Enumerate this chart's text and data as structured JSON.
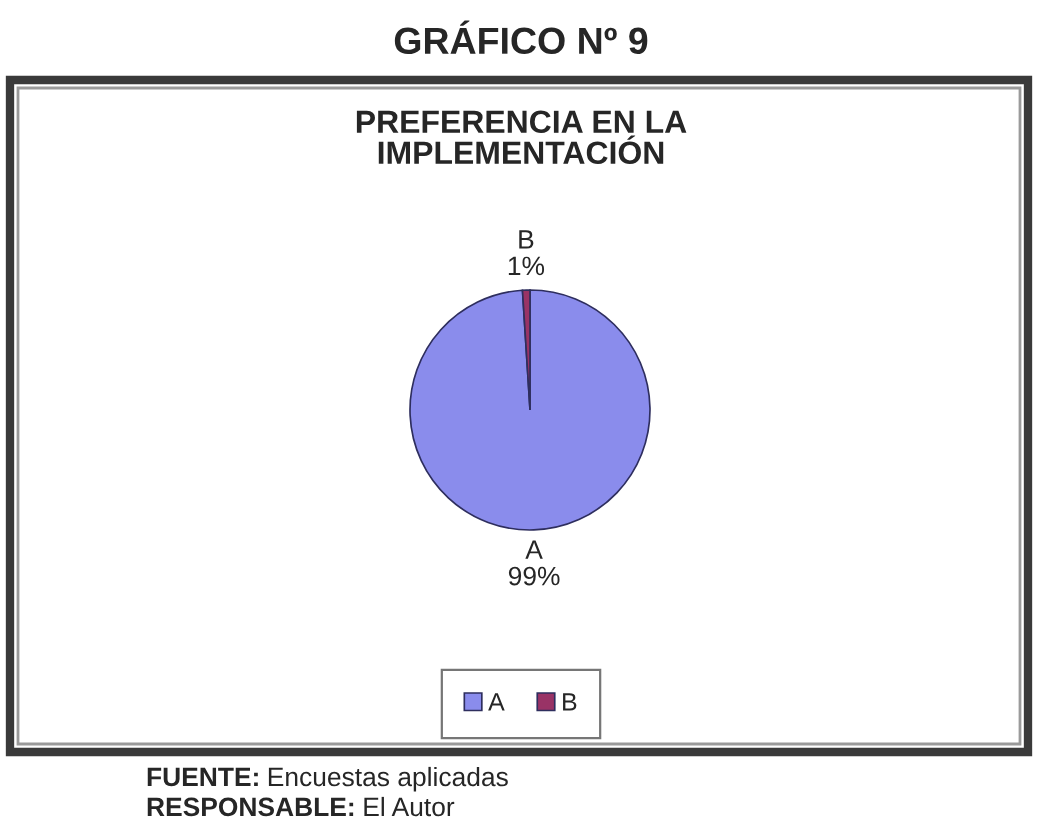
{
  "chart_data": {
    "type": "pie",
    "title": "GRÁFICO Nº 9",
    "subtitle": "PREFERENCIA EN LA\nIMPLEMENTACIÓN",
    "categories": [
      "A",
      "B"
    ],
    "values": [
      99,
      1
    ],
    "colors": [
      "#8a8cec",
      "#993366"
    ],
    "value_labels": [
      "99%",
      "1%"
    ],
    "legend": "bottom",
    "annotations": [
      "FUENTE: Encuestas aplicadas",
      "RESPONSABLE: El Autor"
    ]
  }
}
